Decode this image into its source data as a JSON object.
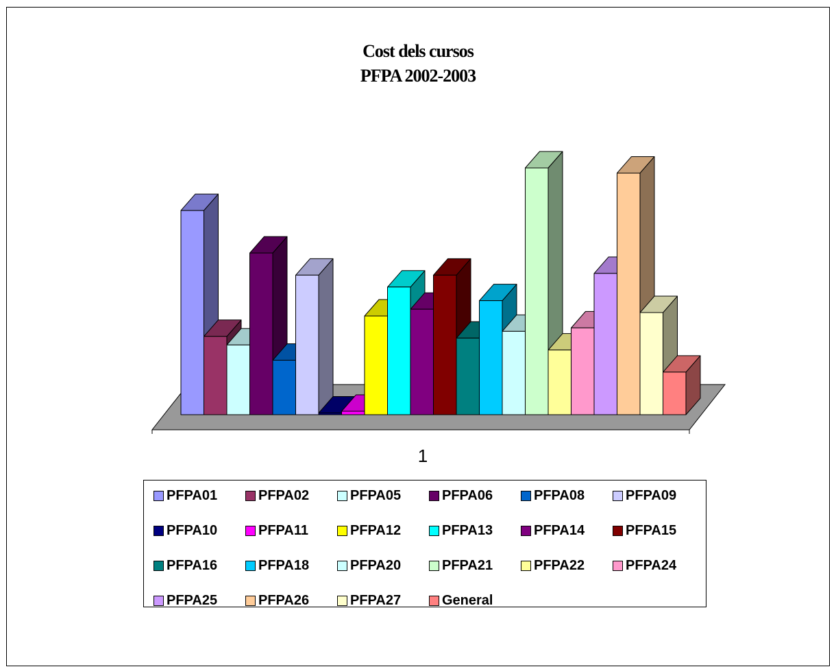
{
  "chart_data": {
    "type": "bar",
    "title": "Cost dels cursos",
    "subtitle": "PFPA 2002-2003",
    "categories": [
      "1"
    ],
    "series": [
      {
        "name": "PFPA01",
        "values": [
          12.0
        ],
        "color": "#9999FF"
      },
      {
        "name": "PFPA02",
        "values": [
          4.6
        ],
        "color": "#993366"
      },
      {
        "name": "PFPA05",
        "values": [
          4.1
        ],
        "color": "#CCFFFF"
      },
      {
        "name": "PFPA06",
        "values": [
          9.5
        ],
        "color": "#660066"
      },
      {
        "name": "PFPA08",
        "values": [
          3.2
        ],
        "color": "#0066CC"
      },
      {
        "name": "PFPA09",
        "values": [
          8.2
        ],
        "color": "#CCCCFF"
      },
      {
        "name": "PFPA10",
        "values": [
          0.1
        ],
        "color": "#000080"
      },
      {
        "name": "PFPA11",
        "values": [
          0.2
        ],
        "color": "#FF00FF"
      },
      {
        "name": "PFPA12",
        "values": [
          5.8
        ],
        "color": "#FFFF00"
      },
      {
        "name": "PFPA13",
        "values": [
          7.5
        ],
        "color": "#00FFFF"
      },
      {
        "name": "PFPA14",
        "values": [
          6.2
        ],
        "color": "#800080"
      },
      {
        "name": "PFPA15",
        "values": [
          8.2
        ],
        "color": "#800000"
      },
      {
        "name": "PFPA16",
        "values": [
          4.5
        ],
        "color": "#008080"
      },
      {
        "name": "PFPA18",
        "values": [
          6.7
        ],
        "color": "#00CCFF"
      },
      {
        "name": "PFPA20",
        "values": [
          4.9
        ],
        "color": "#CCFFFF"
      },
      {
        "name": "PFPA21",
        "values": [
          14.5
        ],
        "color": "#CCFFCC"
      },
      {
        "name": "PFPA22",
        "values": [
          3.8
        ],
        "color": "#FFFF99"
      },
      {
        "name": "PFPA24",
        "values": [
          5.1
        ],
        "color": "#FF99CC"
      },
      {
        "name": "PFPA25",
        "values": [
          8.3
        ],
        "color": "#CC99FF"
      },
      {
        "name": "PFPA26",
        "values": [
          14.2
        ],
        "color": "#FFCC99"
      },
      {
        "name": "PFPA27",
        "values": [
          6.0
        ],
        "color": "#FFFFCC"
      },
      {
        "name": "General",
        "values": [
          2.5
        ],
        "color": "#FF8080"
      }
    ],
    "xlabel": "",
    "ylabel": "",
    "grid": false,
    "legend_position": "bottom",
    "floor_color": "#999999"
  }
}
